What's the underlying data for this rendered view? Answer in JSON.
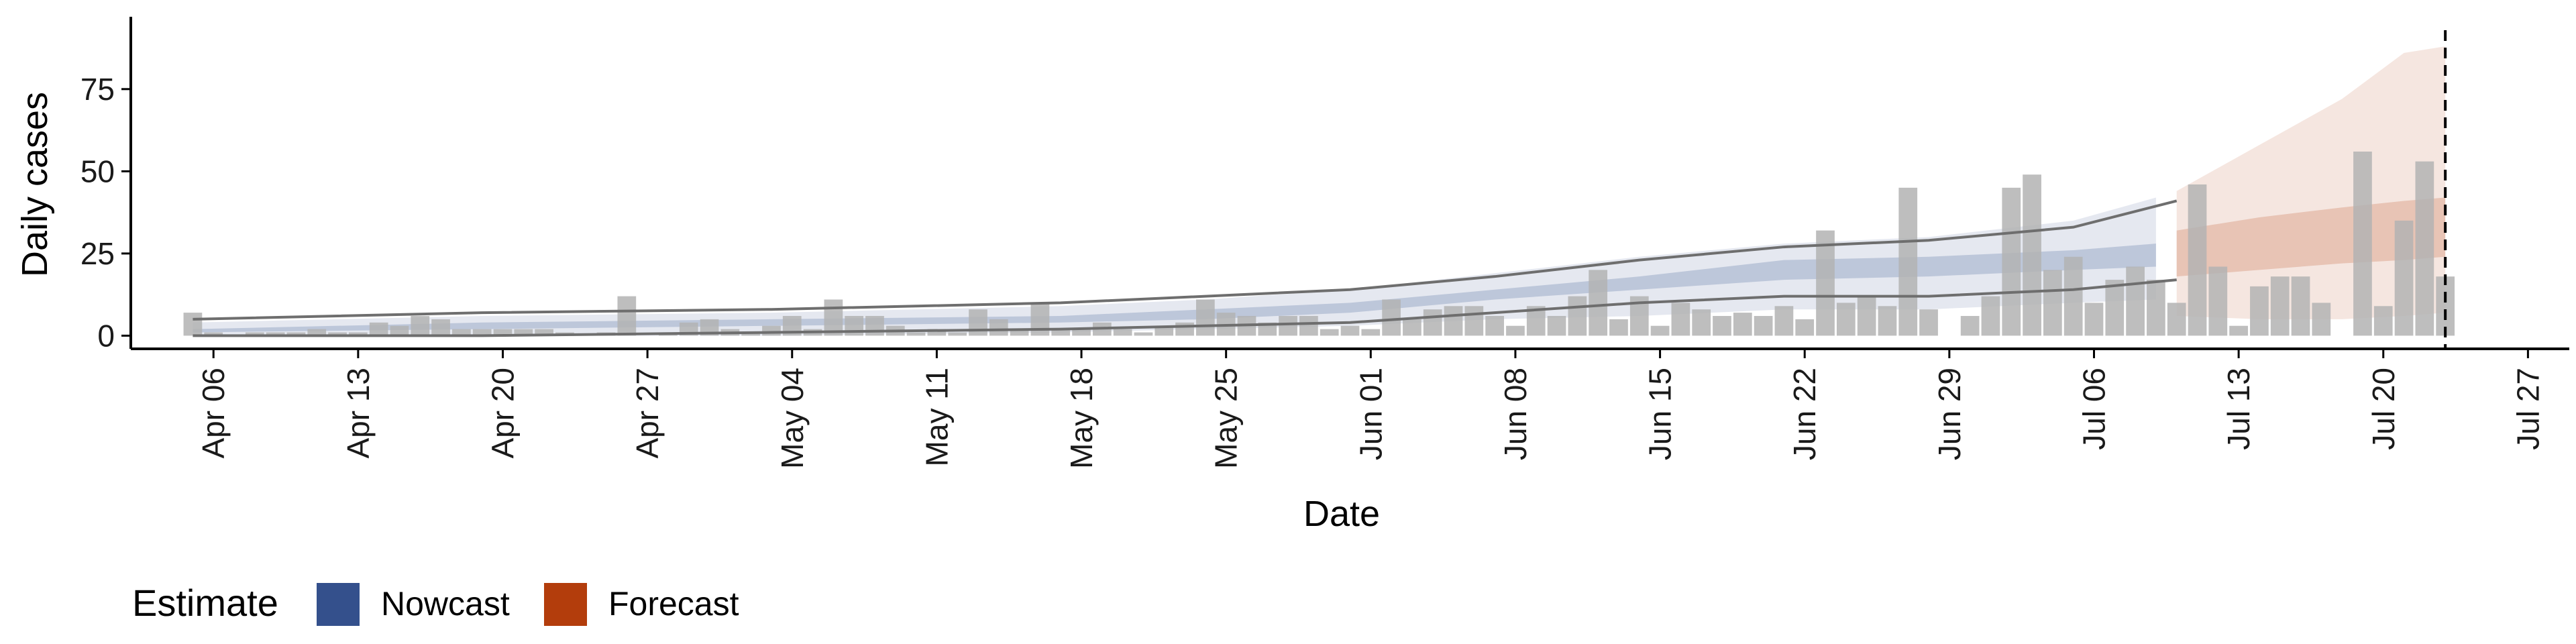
{
  "chart_data": {
    "type": "bar",
    "xlabel": "Date",
    "ylabel": "Daily cases",
    "date_start": "2020-04-05",
    "xlim": [
      "2020-04-02",
      "2020-07-29"
    ],
    "ylim": [
      -4,
      97
    ],
    "x_ticks": [
      "2020-04-06",
      "2020-04-13",
      "2020-04-20",
      "2020-04-27",
      "2020-05-04",
      "2020-05-11",
      "2020-05-18",
      "2020-05-25",
      "2020-06-01",
      "2020-06-08",
      "2020-06-15",
      "2020-06-22",
      "2020-06-29",
      "2020-07-06",
      "2020-07-13",
      "2020-07-20",
      "2020-07-27"
    ],
    "x_tick_labels": [
      "Apr 06",
      "Apr 13",
      "Apr 20",
      "Apr 27",
      "May 04",
      "May 11",
      "May 18",
      "May 25",
      "Jun 01",
      "Jun 08",
      "Jun 15",
      "Jun 22",
      "Jun 29",
      "Jul 06",
      "Jul 13",
      "Jul 20",
      "Jul 27"
    ],
    "y_ticks": [
      0,
      25,
      50,
      75
    ],
    "y_tick_labels": [
      "0",
      "25",
      "50",
      "75"
    ],
    "reference_line_date": "2020-07-23",
    "daily_cases": [
      7,
      1,
      0,
      1,
      1,
      1,
      2,
      1,
      1,
      4,
      3,
      6,
      5,
      2,
      2,
      2,
      2,
      2,
      1,
      0,
      1,
      12,
      0,
      1,
      4,
      5,
      2,
      1,
      3,
      6,
      2,
      11,
      6,
      6,
      3,
      1,
      2,
      1,
      8,
      5,
      2,
      10,
      2,
      2,
      4,
      2,
      1,
      3,
      4,
      11,
      7,
      6,
      4,
      6,
      6,
      2,
      3,
      2,
      11,
      5,
      8,
      9,
      9,
      6,
      3,
      9,
      6,
      12,
      20,
      5,
      12,
      3,
      10,
      8,
      6,
      7,
      6,
      9,
      5,
      32,
      10,
      12,
      9,
      45,
      8,
      0,
      6,
      12,
      45,
      49,
      20,
      24,
      10,
      17,
      21,
      17,
      10,
      46,
      21,
      3,
      15,
      18,
      18,
      10,
      0,
      56,
      9,
      35,
      53,
      18
    ],
    "estimate_bands": {
      "nowcast": {
        "dates": [
          "2020-04-05",
          "2020-04-19",
          "2020-05-03",
          "2020-05-17",
          "2020-05-24",
          "2020-05-31",
          "2020-06-07",
          "2020-06-14",
          "2020-06-21",
          "2020-06-28",
          "2020-07-05",
          "2020-07-09"
        ],
        "lower90": [
          0,
          0,
          0,
          1,
          2,
          3,
          5,
          6,
          8,
          8,
          10,
          11
        ],
        "upper90": [
          4,
          6,
          7,
          9,
          11,
          14,
          19,
          24,
          28,
          30,
          35,
          42
        ],
        "lower50": [
          1,
          2,
          3,
          4,
          5,
          7,
          11,
          14,
          17,
          18,
          20,
          21
        ],
        "upper50": [
          2,
          4,
          5,
          6,
          8,
          10,
          14,
          18,
          23,
          24,
          26,
          28
        ]
      },
      "forecast": {
        "dates": [
          "2020-07-10",
          "2020-07-14",
          "2020-07-18",
          "2020-07-21",
          "2020-07-23"
        ],
        "lower90": [
          6,
          5,
          5,
          6,
          7
        ],
        "upper90": [
          44,
          58,
          72,
          86,
          88
        ],
        "lower50": [
          18,
          20,
          22,
          23,
          24
        ],
        "upper50": [
          32,
          36,
          39,
          41,
          42
        ]
      }
    },
    "outline_lines": {
      "dates": [
        "2020-04-05",
        "2020-04-19",
        "2020-05-03",
        "2020-05-17",
        "2020-05-31",
        "2020-06-07",
        "2020-06-14",
        "2020-06-21",
        "2020-06-28",
        "2020-07-05",
        "2020-07-10"
      ],
      "upper": [
        5,
        7,
        8,
        10,
        14,
        18,
        23,
        27,
        29,
        33,
        41
      ],
      "lower": [
        0,
        0,
        1,
        2,
        4,
        7,
        10,
        12,
        12,
        14,
        17
      ]
    },
    "legend": {
      "title": "Estimate",
      "position": "bottom-left",
      "items": [
        {
          "label": "Nowcast",
          "color": "#34508c"
        },
        {
          "label": "Forecast",
          "color": "#b33d0c"
        }
      ]
    },
    "grid": false
  },
  "colors": {
    "bar": "#b3b3b3",
    "nowcast": "#34508c",
    "forecast": "#b33d0c",
    "outline": "#6e6e6e",
    "axis": "#000000"
  }
}
